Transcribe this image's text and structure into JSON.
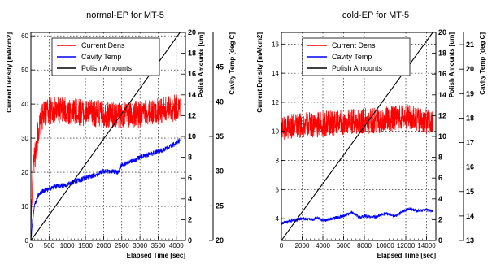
{
  "chart_data": [
    {
      "type": "line",
      "title": "normal-EP for MT-5",
      "xlabel": "Elapsed Time [sec]",
      "xlim": [
        0,
        4250
      ],
      "xticks": [
        "0",
        "500",
        "1000",
        "1500",
        "2000",
        "2500",
        "3000",
        "3500",
        "4000"
      ],
      "axes": [
        {
          "id": "current",
          "label": "Current Density [mA/cm2]",
          "range": [
            0,
            61
          ],
          "ticks": [
            "0",
            "10",
            "20",
            "30",
            "40",
            "50",
            "60"
          ],
          "tick_values": [
            0,
            10,
            20,
            30,
            40,
            50,
            60
          ]
        },
        {
          "id": "polish",
          "label": "Polish Amounts [um]",
          "range": [
            0,
            20
          ],
          "ticks": [
            "0",
            "2",
            "4",
            "6",
            "8",
            "10",
            "12",
            "14",
            "16",
            "18",
            "20"
          ],
          "tick_values": [
            0,
            2,
            4,
            6,
            8,
            10,
            12,
            14,
            16,
            18,
            20
          ]
        },
        {
          "id": "temp",
          "label": "Cavity Temp [deg C]",
          "range": [
            20,
            50
          ],
          "ticks": [
            "20",
            "25",
            "30",
            "35",
            "40",
            "45"
          ],
          "tick_values": [
            20,
            25,
            30,
            35,
            40,
            45
          ]
        }
      ],
      "grid": true,
      "legend": {
        "position": "top-center"
      },
      "series": [
        {
          "name": "Current Dens",
          "color": "#ff0000",
          "axis": "current",
          "x": [
            0,
            50,
            100,
            150,
            200,
            300,
            400,
            500,
            700,
            1000,
            1500,
            2000,
            2500,
            3000,
            3500,
            3800,
            4000,
            4100
          ],
          "y": [
            2,
            20,
            24,
            27,
            32,
            36,
            37.5,
            38,
            38,
            38,
            37.5,
            37,
            36.8,
            37,
            38,
            38.5,
            39,
            38.5
          ],
          "noise": 4
        },
        {
          "name": "Cavity Temp",
          "color": "#0000ff",
          "axis": "temp",
          "x": [
            0,
            50,
            100,
            200,
            300,
            500,
            700,
            1000,
            1200,
            1500,
            1800,
            2000,
            2200,
            2400,
            2500,
            2700,
            3000,
            3300,
            3600,
            3800,
            4000,
            4100
          ],
          "y": [
            20,
            23,
            25,
            26.5,
            27,
            27.5,
            27.8,
            28,
            28.5,
            29,
            29.5,
            30,
            30,
            29.8,
            31,
            31.2,
            32,
            32.5,
            33,
            33.5,
            34,
            34.5
          ],
          "noise": 0.35
        },
        {
          "name": "Polish Amounts",
          "color": "#000000",
          "axis": "polish",
          "x": [
            0,
            4100
          ],
          "y": [
            0,
            20
          ]
        }
      ]
    },
    {
      "type": "line",
      "title": "cold-EP for MT-5",
      "xlabel": "Elapsed Time [sec]",
      "xlim": [
        0,
        14900
      ],
      "xticks": [
        "0",
        "2000",
        "4000",
        "6000",
        "8000",
        "10000",
        "12000",
        "14000"
      ],
      "axes": [
        {
          "id": "current",
          "label": "Current Density [mA/cm2]",
          "range": [
            2.5,
            16.8
          ],
          "ticks": [
            "4",
            "6",
            "8",
            "10",
            "12",
            "14",
            "16"
          ],
          "tick_values": [
            4,
            6,
            8,
            10,
            12,
            14,
            16
          ]
        },
        {
          "id": "polish",
          "label": "Polish Amounts [um]",
          "range": [
            0,
            20
          ],
          "ticks": [
            "0",
            "2",
            "4",
            "6",
            "8",
            "10",
            "12",
            "14",
            "16",
            "18",
            "20"
          ],
          "tick_values": [
            0,
            2,
            4,
            6,
            8,
            10,
            12,
            14,
            16,
            18,
            20
          ]
        },
        {
          "id": "temp",
          "label": "Cavity Temp [deg C]",
          "range": [
            13,
            21.5
          ],
          "ticks": [
            "13",
            "14",
            "15",
            "16",
            "17",
            "18",
            "19",
            "20",
            "21"
          ],
          "tick_values": [
            13,
            14,
            15,
            16,
            17,
            18,
            19,
            20,
            21
          ]
        }
      ],
      "grid": true,
      "legend": {
        "position": "top-center"
      },
      "series": [
        {
          "name": "Current Dens",
          "color": "#ff0000",
          "axis": "current",
          "x": [
            0,
            2000,
            4000,
            6000,
            8000,
            10000,
            12000,
            14000,
            14600
          ],
          "y": [
            10.3,
            10.4,
            10.5,
            10.6,
            10.7,
            10.8,
            11,
            10.7,
            10.5
          ],
          "noise": 0.9
        },
        {
          "name": "Cavity Temp",
          "color": "#0000ff",
          "axis": "temp",
          "x": [
            0,
            500,
            1000,
            2000,
            3000,
            3500,
            4000,
            5000,
            6000,
            6800,
            7500,
            8000,
            9000,
            10000,
            11000,
            12000,
            12500,
            13000,
            14000,
            14600
          ],
          "y": [
            13.7,
            13.75,
            13.8,
            13.9,
            13.85,
            13.95,
            13.8,
            13.9,
            14.0,
            14.15,
            13.95,
            14.0,
            13.95,
            14.1,
            14.0,
            14.25,
            14.3,
            14.2,
            14.25,
            14.2
          ],
          "noise": 0.06
        },
        {
          "name": "Polish Amounts",
          "color": "#000000",
          "axis": "polish",
          "x": [
            0,
            14600
          ],
          "y": [
            0,
            20
          ]
        }
      ]
    }
  ]
}
